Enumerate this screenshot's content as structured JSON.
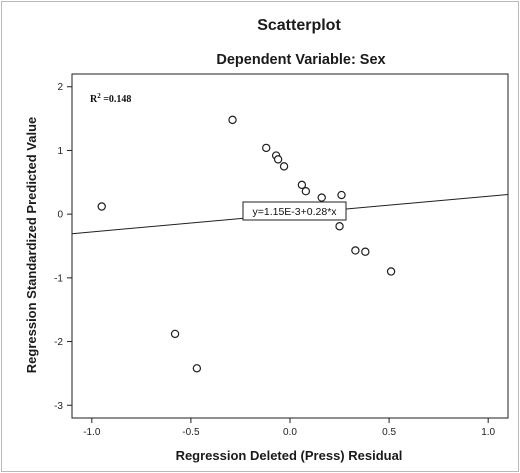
{
  "chart_data": {
    "type": "scatter",
    "title": "Scatterplot",
    "subtitle": "Dependent Variable: Sex",
    "xlabel": "Regression Deleted (Press) Residual",
    "ylabel": "Regression Standardized Predicted Value",
    "xlim": [
      -1.1,
      1.1
    ],
    "ylim": [
      -3.2,
      2.2
    ],
    "x_ticks": [
      "-1.0",
      "-0.5",
      "0.0",
      "0.5",
      "1.0"
    ],
    "x_tick_values": [
      -1.0,
      -0.5,
      0.0,
      0.5,
      1.0
    ],
    "y_ticks": [
      "2",
      "1",
      "0",
      "-1",
      "-2",
      "-3"
    ],
    "y_tick_values": [
      2,
      1,
      0,
      -1,
      -2,
      -3
    ],
    "grid": false,
    "points": [
      {
        "x": -0.95,
        "y": 0.12
      },
      {
        "x": -0.29,
        "y": 1.48
      },
      {
        "x": -0.12,
        "y": 1.04
      },
      {
        "x": -0.07,
        "y": 0.92
      },
      {
        "x": -0.06,
        "y": 0.86
      },
      {
        "x": -0.03,
        "y": 0.75
      },
      {
        "x": 0.06,
        "y": 0.46
      },
      {
        "x": 0.08,
        "y": 0.36
      },
      {
        "x": 0.16,
        "y": 0.26
      },
      {
        "x": 0.26,
        "y": 0.3
      },
      {
        "x": 0.25,
        "y": -0.19
      },
      {
        "x": 0.33,
        "y": -0.57
      },
      {
        "x": 0.38,
        "y": -0.59
      },
      {
        "x": 0.51,
        "y": -0.9
      },
      {
        "x": -0.58,
        "y": -1.88
      },
      {
        "x": -0.47,
        "y": -2.42
      }
    ],
    "fit_line": {
      "intercept": 0.00115,
      "slope": 0.28
    },
    "r2_text": "R² =0.148",
    "equation_text": "y=1.15E-3+0.28*x"
  }
}
